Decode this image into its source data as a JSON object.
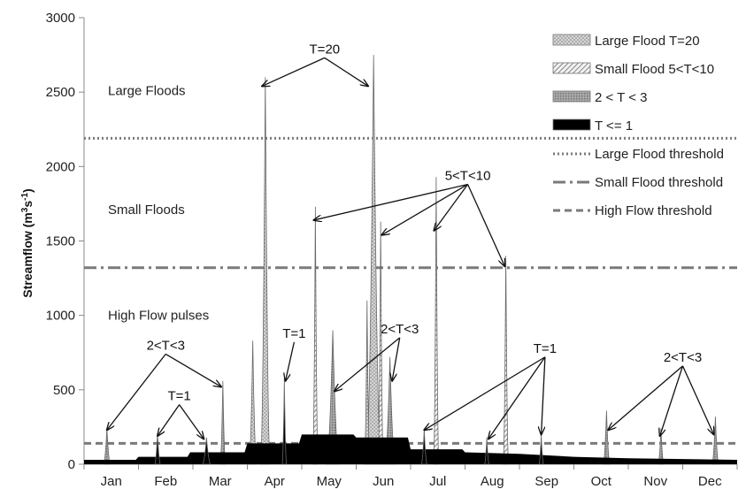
{
  "chart_data": {
    "type": "area",
    "ylabel": "Streamflow (m³s⁻¹)",
    "ylabel_parts": {
      "pre": "Streamflow (m",
      "sup1": "3",
      "mid": "s",
      "sup2": "-1",
      "post": ")"
    },
    "ylim": [
      0,
      3000
    ],
    "yticks": [
      "0",
      "500",
      "1000",
      "1500",
      "2000",
      "2500",
      "3000"
    ],
    "yticks_values": [
      0,
      500,
      1000,
      1500,
      2000,
      2500,
      3000
    ],
    "xtick_labels": [
      "Jan",
      "Feb",
      "Mar",
      "Apr",
      "May",
      "Jun",
      "Jul",
      "Aug",
      "Sep",
      "Oct",
      "Nov",
      "Dec"
    ],
    "thresholds": [
      {
        "name": "Large Flood  threshold",
        "value": 2190,
        "style": "dotted"
      },
      {
        "name": "Small  Flood threshold",
        "value": 1320,
        "style": "dashdot"
      },
      {
        "name": "High Flow threshold",
        "value": 140,
        "style": "dashed"
      }
    ],
    "zone_labels": [
      {
        "text": "Large Floods",
        "y": 2510
      },
      {
        "text": "Small Floods",
        "y": 1710
      },
      {
        "text": "High Flow pulses",
        "y": 1000
      }
    ],
    "series": [
      {
        "name": "Large Flood T=20",
        "pattern": "dots",
        "color": "#b5b5b5",
        "peaks": [
          {
            "month": 3.33,
            "value": 2600,
            "half_width": 0.09
          },
          {
            "month": 3.1,
            "value": 830,
            "half_width": 0.07
          },
          {
            "month": 5.32,
            "value": 2750,
            "half_width": 0.14
          },
          {
            "month": 5.2,
            "value": 1100,
            "half_width": 0.05
          }
        ]
      },
      {
        "name": "Small Flood 5<T<10",
        "pattern": "hatch",
        "color": "#9a9a9a",
        "peaks": [
          {
            "month": 4.25,
            "value": 1730,
            "half_width": 0.05
          },
          {
            "month": 5.45,
            "value": 1630,
            "half_width": 0.05
          },
          {
            "month": 6.47,
            "value": 1930,
            "half_width": 0.05
          },
          {
            "month": 7.75,
            "value": 1400,
            "half_width": 0.05
          }
        ]
      },
      {
        "name": "2 < T < 3",
        "pattern": "grid",
        "color": "#8c8c8c",
        "peaks": [
          {
            "month": 0.42,
            "value": 240,
            "half_width": 0.06
          },
          {
            "month": 2.55,
            "value": 560,
            "half_width": 0.05
          },
          {
            "month": 4.57,
            "value": 900,
            "half_width": 0.12
          },
          {
            "month": 5.62,
            "value": 720,
            "half_width": 0.1
          },
          {
            "month": 9.6,
            "value": 360,
            "half_width": 0.06
          },
          {
            "month": 10.6,
            "value": 240,
            "half_width": 0.05
          },
          {
            "month": 11.6,
            "value": 320,
            "half_width": 0.06
          }
        ]
      },
      {
        "name": "T <= 1",
        "pattern": "solid",
        "color": "#000000",
        "baseflow": [
          [
            0,
            30
          ],
          [
            0.95,
            30
          ],
          [
            1.0,
            50
          ],
          [
            1.9,
            50
          ],
          [
            1.95,
            80
          ],
          [
            2.95,
            80
          ],
          [
            3.0,
            140
          ],
          [
            3.95,
            140
          ],
          [
            4.0,
            200
          ],
          [
            4.95,
            200
          ],
          [
            5.0,
            180
          ],
          [
            5.95,
            180
          ],
          [
            6.0,
            100
          ],
          [
            6.95,
            100
          ],
          [
            7.0,
            80
          ],
          [
            8.0,
            70
          ],
          [
            9.0,
            50
          ],
          [
            10.0,
            40
          ],
          [
            11.0,
            35
          ],
          [
            12.0,
            30
          ]
        ],
        "peaks": [
          {
            "month": 1.35,
            "value": 210,
            "half_width": 0.05
          },
          {
            "month": 2.25,
            "value": 180,
            "half_width": 0.07
          },
          {
            "month": 3.68,
            "value": 580,
            "half_width": 0.04
          },
          {
            "month": 6.25,
            "value": 240,
            "half_width": 0.05
          },
          {
            "month": 7.4,
            "value": 180,
            "half_width": 0.04
          },
          {
            "month": 8.4,
            "value": 200,
            "half_width": 0.04
          }
        ]
      }
    ],
    "annotations": [
      {
        "text": "T=20",
        "text_at": [
          4.42,
          2760
        ],
        "targets": [
          [
            3.27,
            2540
          ],
          [
            5.22,
            2540
          ]
        ]
      },
      {
        "text": "5<T<10",
        "text_at": [
          7.05,
          1910
        ],
        "targets": [
          [
            4.22,
            1640
          ],
          [
            5.47,
            1540
          ],
          [
            6.43,
            1570
          ],
          [
            7.73,
            1330
          ]
        ]
      },
      {
        "text": "2<T<3",
        "text_at": [
          1.5,
          770
        ],
        "targets": [
          [
            0.42,
            230
          ],
          [
            2.52,
            520
          ]
        ]
      },
      {
        "text": "T=1",
        "text_at": [
          1.75,
          430
        ],
        "targets": [
          [
            1.35,
            190
          ],
          [
            2.2,
            170
          ]
        ]
      },
      {
        "text": "T=1",
        "text_at": [
          3.86,
          850
        ],
        "targets": [
          [
            3.7,
            560
          ]
        ]
      },
      {
        "text": "2<T<3",
        "text_at": [
          5.8,
          880
        ],
        "targets": [
          [
            4.6,
            490
          ],
          [
            5.66,
            560
          ]
        ]
      },
      {
        "text": "T=1",
        "text_at": [
          8.47,
          750
        ],
        "targets": [
          [
            6.25,
            230
          ],
          [
            7.43,
            170
          ],
          [
            8.4,
            200
          ]
        ]
      },
      {
        "text": "2<T<3",
        "text_at": [
          11.0,
          690
        ],
        "targets": [
          [
            9.63,
            230
          ],
          [
            10.58,
            190
          ],
          [
            11.57,
            200
          ]
        ]
      }
    ],
    "legend": {
      "position": "top-right"
    }
  }
}
